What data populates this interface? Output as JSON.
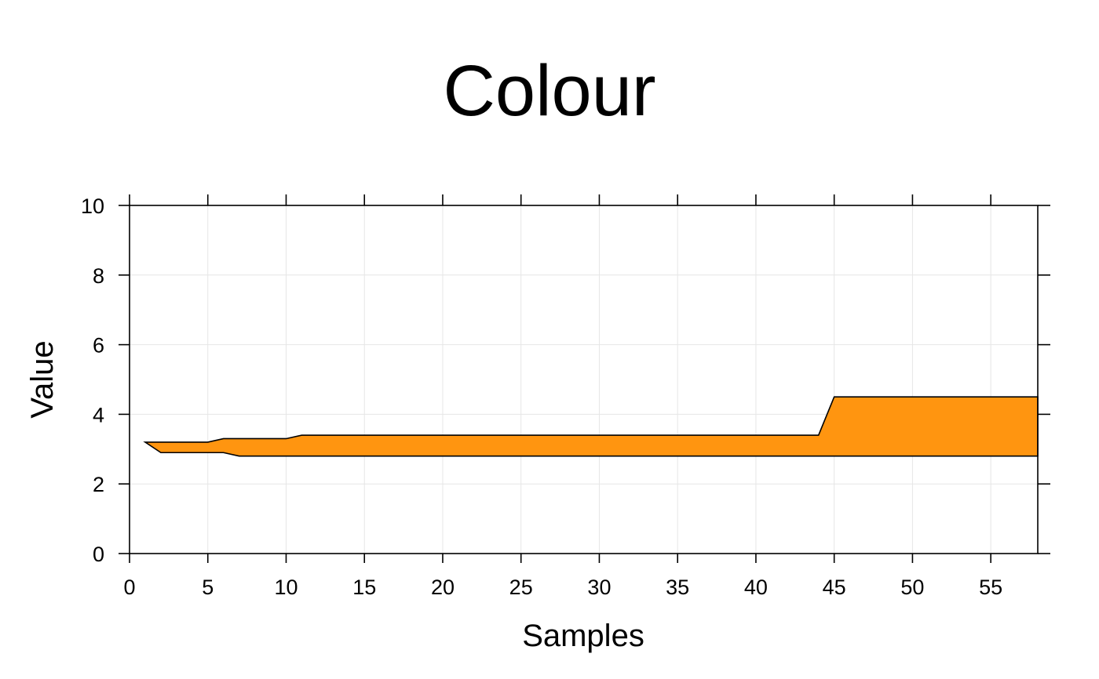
{
  "chart_data": {
    "type": "area",
    "title": "Colour",
    "xlabel": "Samples",
    "ylabel": "Value",
    "xlim": [
      0,
      58
    ],
    "ylim": [
      0,
      10
    ],
    "xticks": [
      0,
      5,
      10,
      15,
      20,
      25,
      30,
      35,
      40,
      45,
      50,
      55
    ],
    "yticks": [
      0,
      2,
      4,
      6,
      8,
      10
    ],
    "grid": true,
    "fill_color": "#ff9510",
    "upper": {
      "x": [
        1,
        2,
        5,
        6,
        7,
        10,
        11,
        44,
        45,
        58
      ],
      "y": [
        3.2,
        3.2,
        3.2,
        3.3,
        3.3,
        3.3,
        3.4,
        3.4,
        4.5,
        4.5
      ]
    },
    "lower": {
      "x": [
        1,
        2,
        5,
        6,
        7,
        58
      ],
      "y": [
        3.2,
        2.9,
        2.9,
        2.9,
        2.8,
        2.8
      ]
    }
  }
}
